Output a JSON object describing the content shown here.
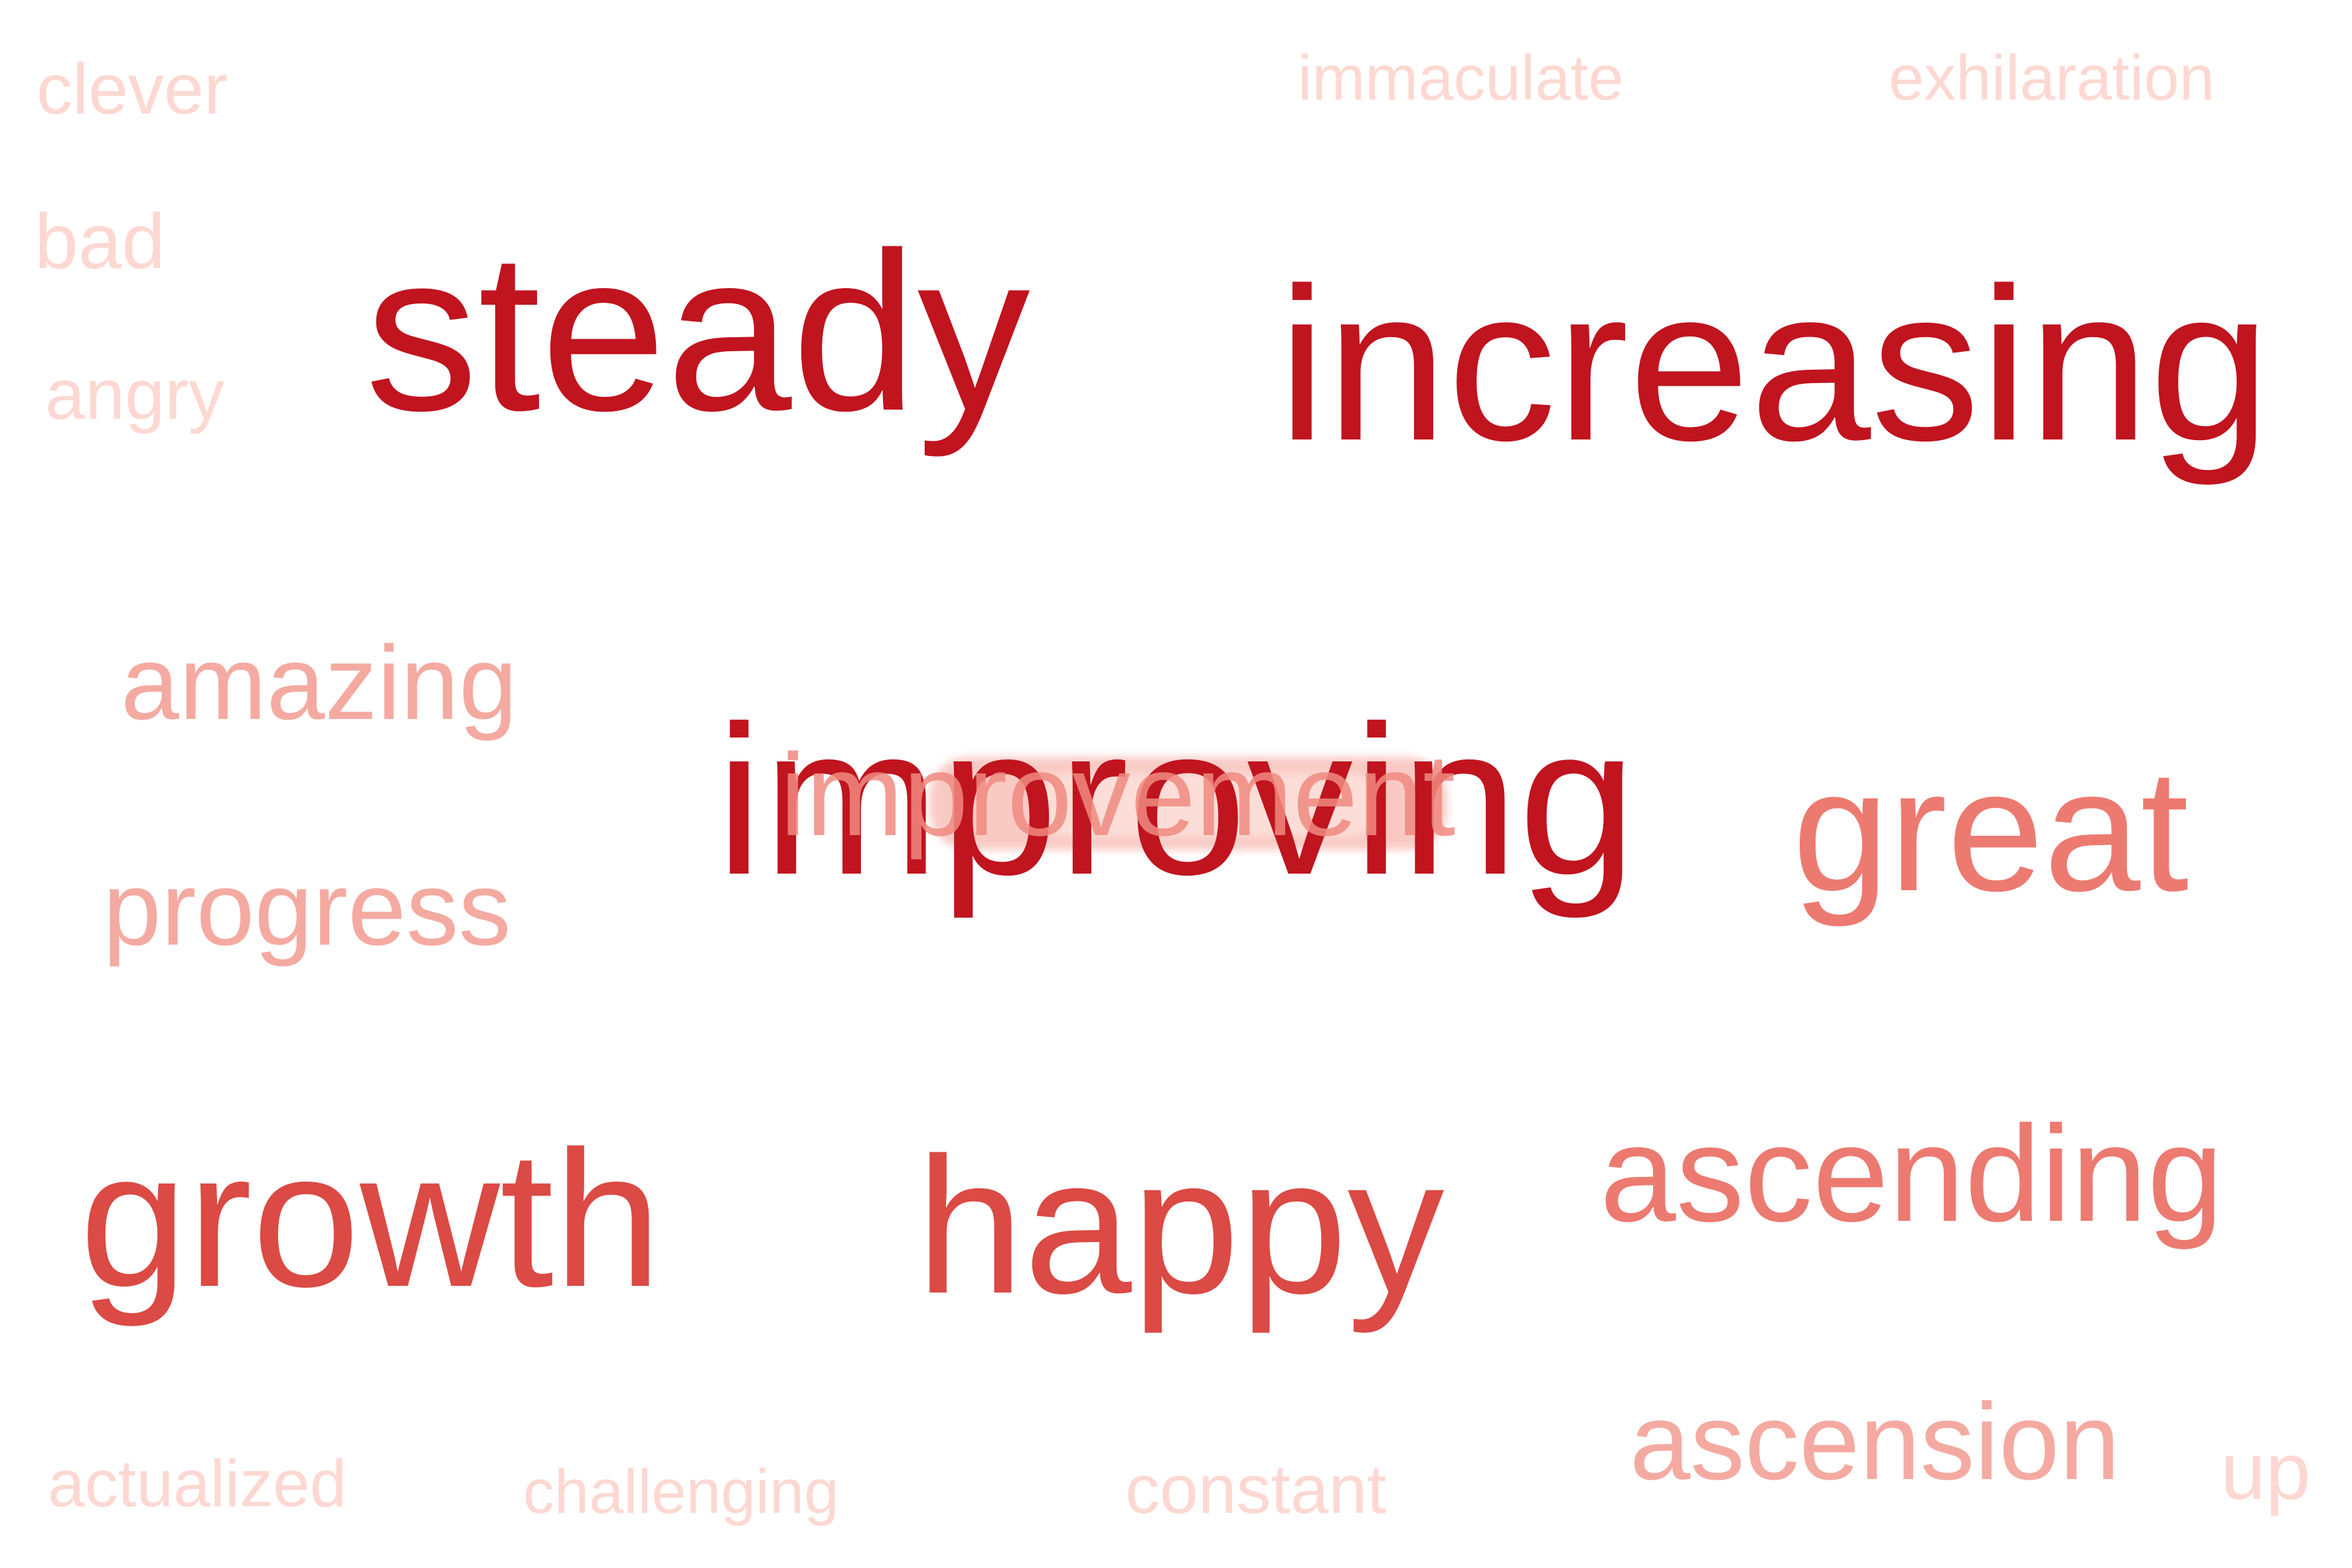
{
  "words": [
    {
      "text": "clever",
      "color": "#fdd8d2",
      "weight": "smallest"
    },
    {
      "text": "immaculate",
      "color": "#fdd8d2",
      "weight": "smallest"
    },
    {
      "text": "exhilaration",
      "color": "#fdd8d2",
      "weight": "smallest"
    },
    {
      "text": "bad",
      "color": "#fdd8d2",
      "weight": "smallest"
    },
    {
      "text": "angry",
      "color": "#fdd8d2",
      "weight": "smallest"
    },
    {
      "text": "steady",
      "color": "#c0141f",
      "weight": "largest"
    },
    {
      "text": "increasing",
      "color": "#c0141f",
      "weight": "largest"
    },
    {
      "text": "amazing",
      "color": "#f4aaa1",
      "weight": "medium"
    },
    {
      "text": "improving",
      "color": "#c0141f",
      "weight": "largest"
    },
    {
      "text": "improvement",
      "color": "#f08a80",
      "weight": "medium"
    },
    {
      "text": "great",
      "color": "#ec7a70",
      "weight": "large"
    },
    {
      "text": "progress",
      "color": "#f4aaa1",
      "weight": "medium"
    },
    {
      "text": "growth",
      "color": "#db4a44",
      "weight": "large"
    },
    {
      "text": "happy",
      "color": "#db4a44",
      "weight": "large"
    },
    {
      "text": "ascending",
      "color": "#ec7a70",
      "weight": "medium"
    },
    {
      "text": "ascension",
      "color": "#f4aaa1",
      "weight": "medium"
    },
    {
      "text": "actualized",
      "color": "#fdd8d2",
      "weight": "smallest"
    },
    {
      "text": "challenging",
      "color": "#fdd8d2",
      "weight": "smallest"
    },
    {
      "text": "constant",
      "color": "#fdd8d2",
      "weight": "smallest"
    },
    {
      "text": "up",
      "color": "#fdd8d2",
      "weight": "smallest"
    }
  ]
}
